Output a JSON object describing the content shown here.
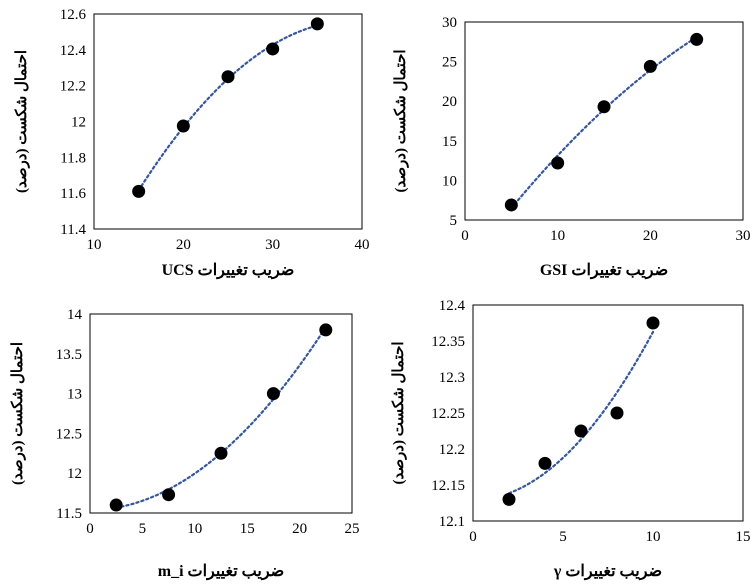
{
  "chart_data": [
    {
      "type": "scatter",
      "xlabel": "ضریب تغییرات UCS",
      "ylabel": "احتمال شکست (درصد)",
      "xlim": [
        10,
        40
      ],
      "ylim": [
        11.4,
        12.6
      ],
      "xticks": [
        "10",
        "20",
        "30",
        "40"
      ],
      "yticks": [
        "11.4",
        "11.6",
        "11.8",
        "12",
        "12.2",
        "12.4",
        "12.6"
      ],
      "x": [
        15,
        20,
        25,
        30,
        35
      ],
      "y": [
        11.61,
        11.975,
        12.25,
        12.405,
        12.545
      ],
      "trendline": "polynomial",
      "grid": false
    },
    {
      "type": "scatter",
      "xlabel": "ضریب تغییرات GSI",
      "ylabel": "احتمال شکست (درصد)",
      "xlim": [
        0,
        30
      ],
      "ylim": [
        5,
        30
      ],
      "xticks": [
        "0",
        "10",
        "20",
        "30"
      ],
      "yticks": [
        "5",
        "10",
        "15",
        "20",
        "25",
        "30"
      ],
      "x": [
        5,
        10,
        15,
        20,
        25
      ],
      "y": [
        6.9,
        12.2,
        19.3,
        24.4,
        27.8
      ],
      "trendline": "polynomial",
      "grid": false
    },
    {
      "type": "scatter",
      "xlabel": "ضریب تغییرات m_i",
      "ylabel": "احتمال شکست (درصد)",
      "xlim": [
        0,
        25
      ],
      "ylim": [
        11.5,
        14
      ],
      "xticks": [
        "0",
        "5",
        "10",
        "15",
        "20",
        "25"
      ],
      "yticks": [
        "11.5",
        "12",
        "12.5",
        "13",
        "13.5",
        "14"
      ],
      "x": [
        2.5,
        7.5,
        12.5,
        17.5,
        22.5
      ],
      "y": [
        11.6,
        11.73,
        12.25,
        13.0,
        13.8
      ],
      "trendline": "polynomial",
      "grid": false
    },
    {
      "type": "scatter",
      "xlabel": "ضریب تغییرات γ",
      "ylabel": "احتمال شکست (درصد)",
      "xlim": [
        0,
        15
      ],
      "ylim": [
        12.1,
        12.4
      ],
      "xticks": [
        "0",
        "5",
        "10",
        "15"
      ],
      "yticks": [
        "12.1",
        "12.15",
        "12.2",
        "12.25",
        "12.3",
        "12.35",
        "12.4"
      ],
      "x": [
        2,
        4,
        6,
        8,
        10
      ],
      "y": [
        12.13,
        12.18,
        12.225,
        12.25,
        12.375
      ],
      "trendline": "polynomial",
      "grid": false
    }
  ],
  "colors": {
    "marker": "#000000",
    "trendline": "#2f55b8",
    "axis": "#000000"
  }
}
